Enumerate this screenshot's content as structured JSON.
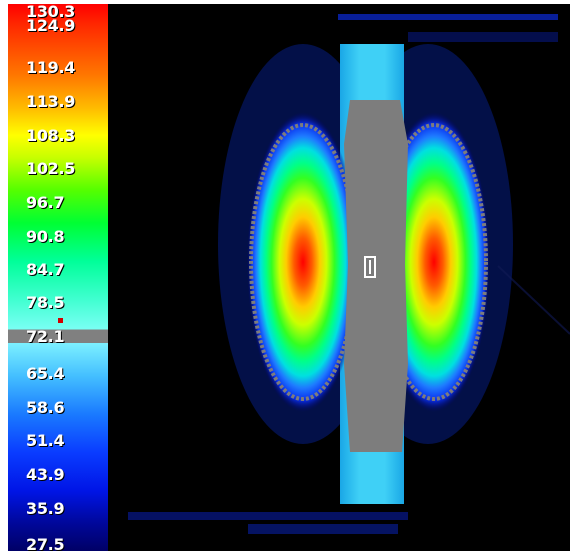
{
  "chart_data": {
    "type": "heatmap",
    "title": "",
    "xlabel": "",
    "ylabel": "",
    "colorbar": {
      "placement": "left",
      "ticks": [
        "130.3",
        "124.9",
        "119.4",
        "113.9",
        "108.3",
        "102.5",
        "96.7",
        "90.8",
        "84.7",
        "78.5",
        "72.1",
        "65.4",
        "58.6",
        "51.4",
        "43.9",
        "35.9",
        "27.5"
      ],
      "range": [
        27.5,
        130.3
      ],
      "marker_value": 72.1
    },
    "colors": {
      "background": "#000000",
      "gray_region": "#808080",
      "hot": "#ff0000",
      "cool": "#00ffff"
    },
    "field": {
      "hotspots": [
        {
          "name": "left lobe",
          "peak_value": 130.3
        },
        {
          "name": "right lobe",
          "peak_value": 130.3
        }
      ],
      "probe_label": ""
    }
  }
}
